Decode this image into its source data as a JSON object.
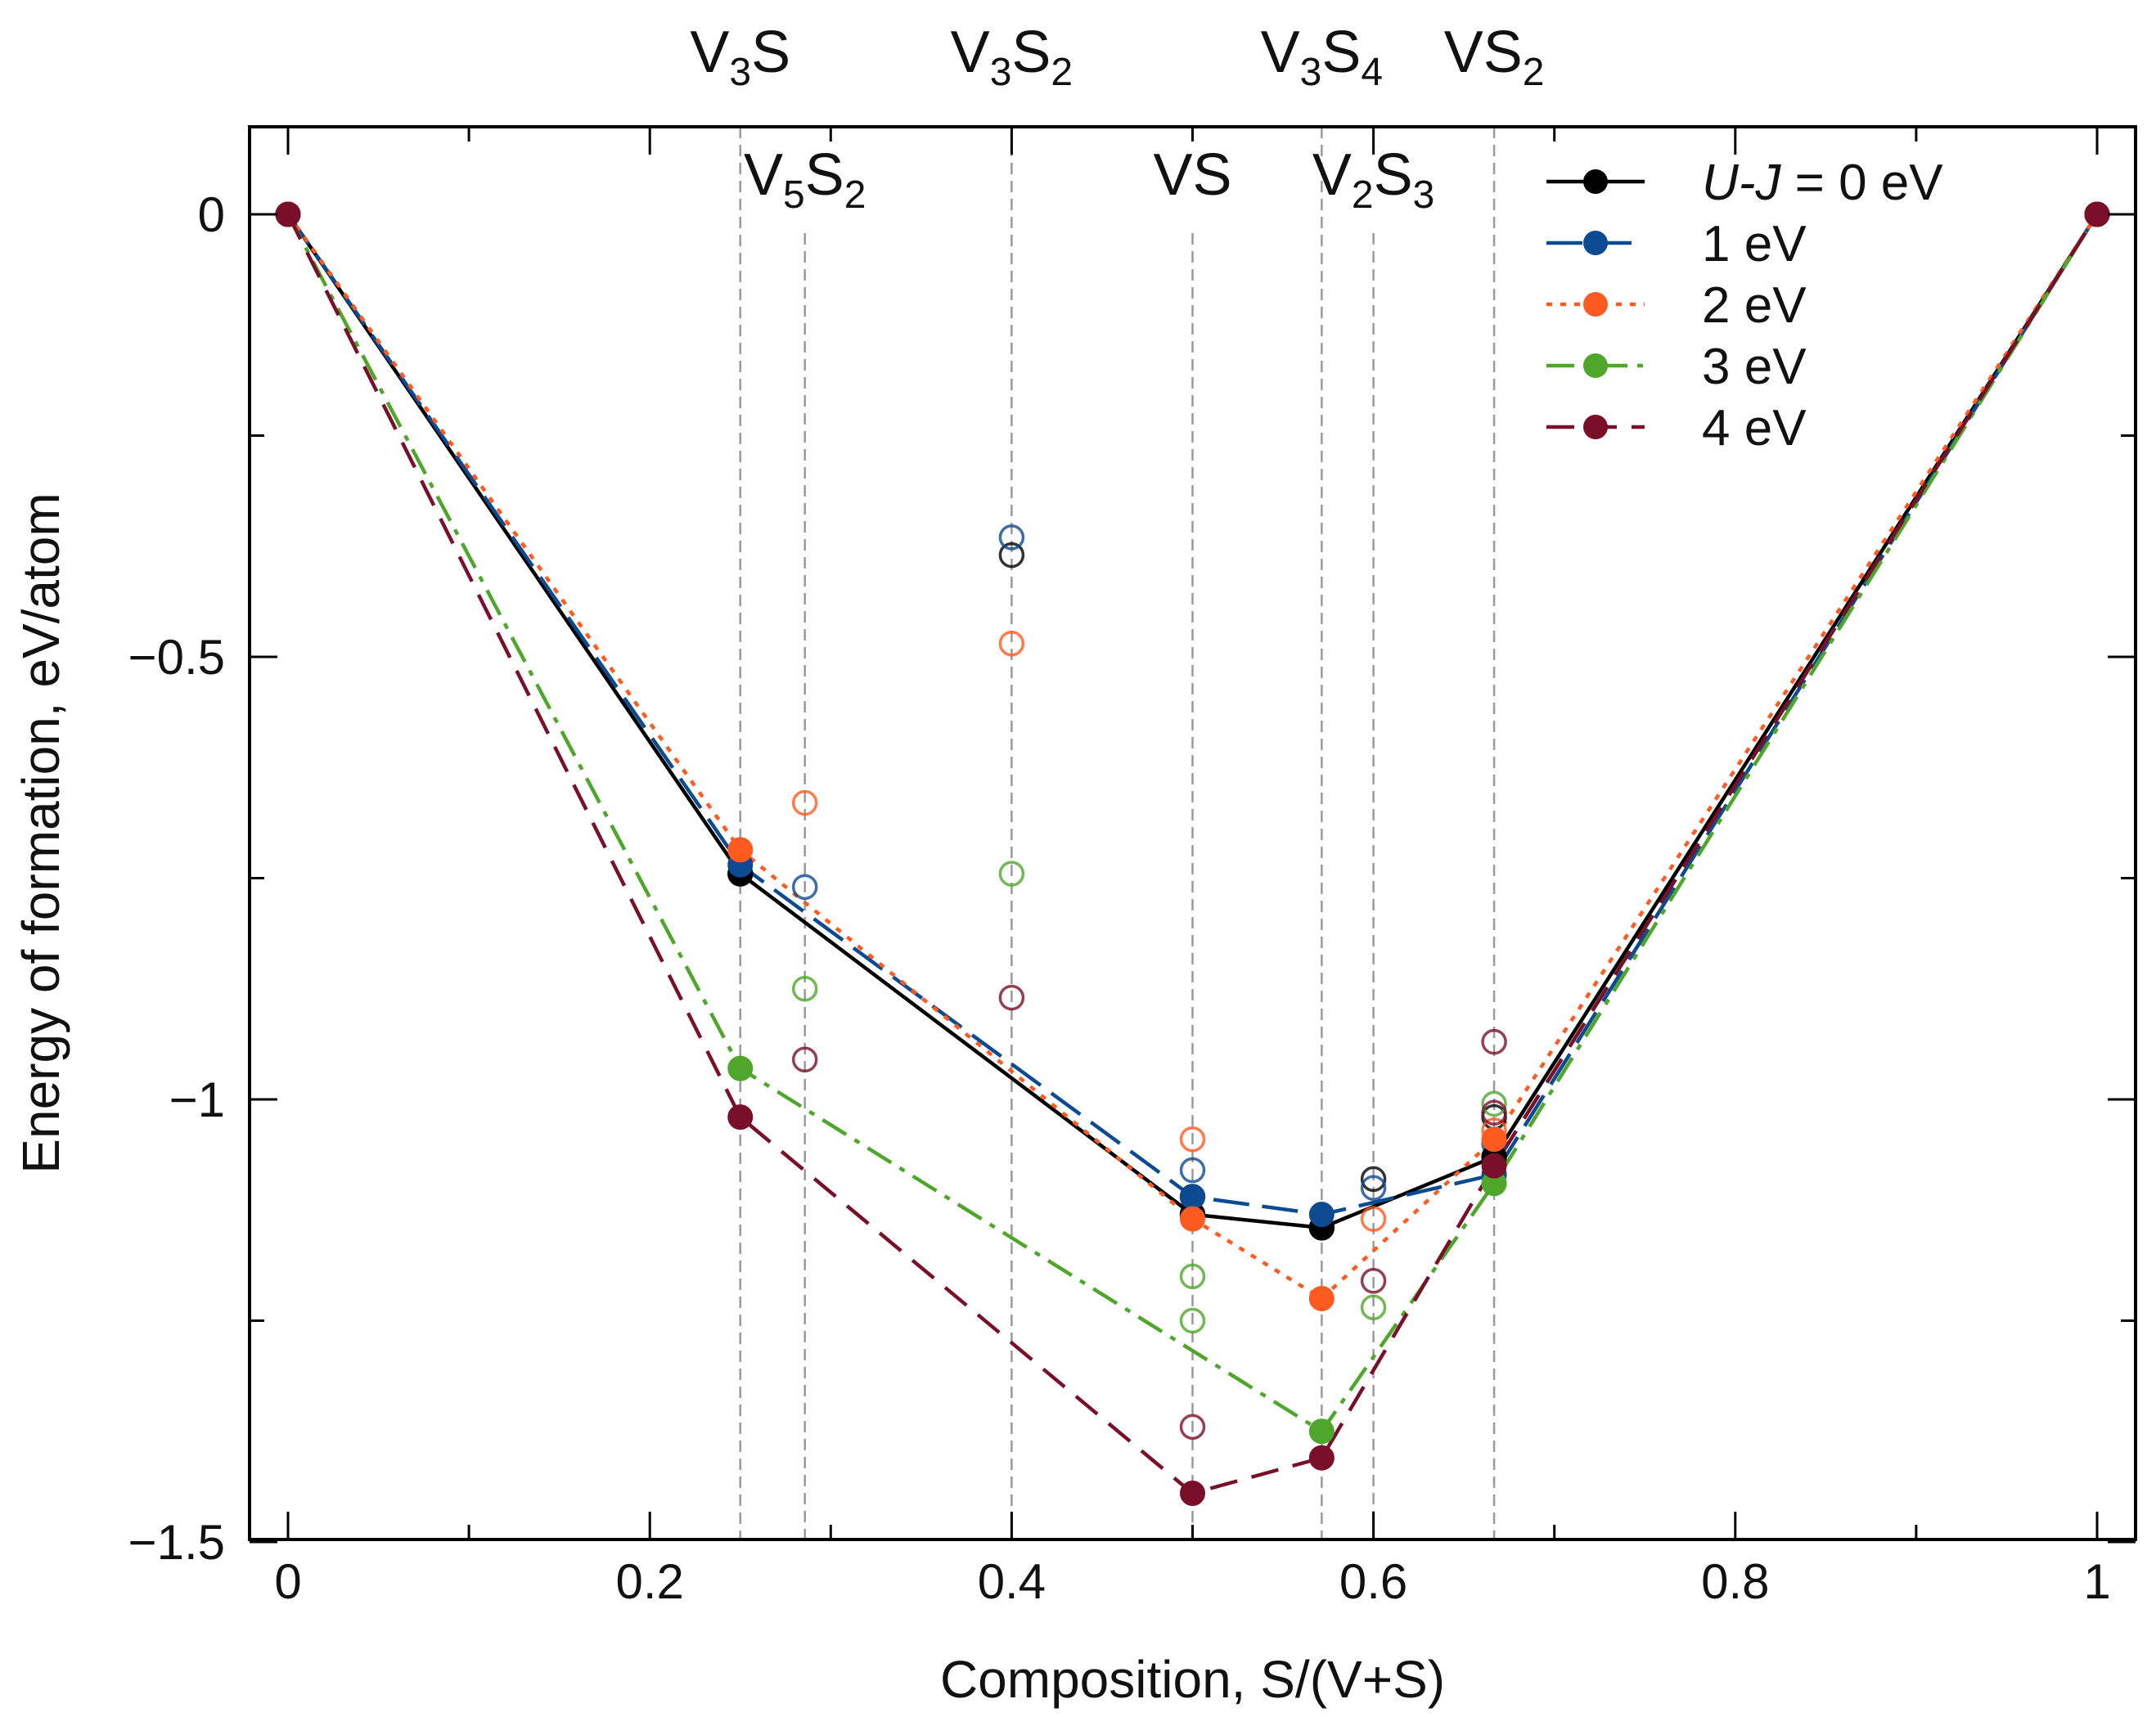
{
  "chart_data": {
    "type": "line",
    "title": "",
    "xlabel": "Composition, S/(V+S)",
    "ylabel": "Energy of formation, eV/atom",
    "xlim": [
      -0.02,
      1.02
    ],
    "ylim": [
      -1.5,
      0.1
    ],
    "x_ticks": [
      0,
      0.2,
      0.4,
      0.6,
      0.8,
      1
    ],
    "x_tick_labels": [
      "0",
      "0.2",
      "0.4",
      "0.6",
      "0.8",
      "1"
    ],
    "y_ticks": [
      0,
      -0.5,
      -1,
      -1.5
    ],
    "y_tick_labels": [
      "0",
      "−0.5",
      "−1",
      "−1.5"
    ],
    "grid": false,
    "legend_position": "top-right",
    "phases": [
      {
        "x": 0.25,
        "base": "V",
        "sub1": "3",
        "mid": "S",
        "sub2": "",
        "row": "top"
      },
      {
        "x": 0.2857,
        "base": "V",
        "sub1": "5",
        "mid": "S",
        "sub2": "2",
        "row": "inner"
      },
      {
        "x": 0.4,
        "base": "V",
        "sub1": "3",
        "mid": "S",
        "sub2": "2",
        "row": "top"
      },
      {
        "x": 0.5,
        "base": "V",
        "sub1": "",
        "mid": "S",
        "sub2": "",
        "row": "inner"
      },
      {
        "x": 0.5714,
        "base": "V",
        "sub1": "3",
        "mid": "S",
        "sub2": "4",
        "row": "top"
      },
      {
        "x": 0.6,
        "base": "V",
        "sub1": "2",
        "mid": "S",
        "sub2": "3",
        "row": "inner"
      },
      {
        "x": 0.6667,
        "base": "V",
        "sub1": "",
        "mid": "S",
        "sub2": "2",
        "row": "top"
      }
    ],
    "series": [
      {
        "name": "U-J = 0 eV",
        "legend_italic": "U-J",
        "legend_rest": " = 0 eV",
        "color": "#000000",
        "dash": "solid",
        "hull": [
          [
            0,
            0
          ],
          [
            0.25,
            -0.745
          ],
          [
            0.5,
            -1.13
          ],
          [
            0.5714,
            -1.145
          ],
          [
            0.6667,
            -1.065
          ],
          [
            1,
            0
          ]
        ],
        "points": [
          [
            0.25,
            -0.745
          ],
          [
            0.4,
            -0.385
          ],
          [
            0.5,
            -1.13
          ],
          [
            0.5,
            -1.11
          ],
          [
            0.5714,
            -1.145
          ],
          [
            0.6,
            -1.09
          ],
          [
            0.6667,
            -1.065
          ],
          [
            0.6667,
            -1.02
          ]
        ],
        "stable": [
          [
            0,
            0
          ],
          [
            0.25,
            -0.745
          ],
          [
            0.5,
            -1.13
          ],
          [
            0.5714,
            -1.145
          ],
          [
            0.6667,
            -1.065
          ],
          [
            1,
            0
          ]
        ]
      },
      {
        "name": "1 eV",
        "color": "#0c4a91",
        "dash": "longdash",
        "hull": [
          [
            0,
            0
          ],
          [
            0.25,
            -0.735
          ],
          [
            0.5,
            -1.11
          ],
          [
            0.5714,
            -1.13
          ],
          [
            0.6667,
            -1.085
          ],
          [
            1,
            0
          ]
        ],
        "points": [
          [
            0.2857,
            -0.76
          ],
          [
            0.4,
            -0.365
          ],
          [
            0.5,
            -1.08
          ],
          [
            0.6,
            -1.1
          ],
          [
            0.6667,
            -1.05
          ]
        ],
        "stable": [
          [
            0,
            0
          ],
          [
            0.25,
            -0.735
          ],
          [
            0.5,
            -1.11
          ],
          [
            0.5714,
            -1.13
          ],
          [
            0.6667,
            -1.085
          ],
          [
            1,
            0
          ]
        ]
      },
      {
        "name": "2 eV",
        "color": "#ff5a1f",
        "dash": "dot",
        "hull": [
          [
            0,
            0
          ],
          [
            0.25,
            -0.718
          ],
          [
            0.5,
            -1.135
          ],
          [
            0.5714,
            -1.225
          ],
          [
            0.6667,
            -1.045
          ],
          [
            1,
            0
          ]
        ],
        "points": [
          [
            0.2857,
            -0.665
          ],
          [
            0.4,
            -0.485
          ],
          [
            0.5,
            -1.045
          ],
          [
            0.6,
            -1.135
          ],
          [
            0.6667,
            -1.035
          ]
        ],
        "stable": [
          [
            0,
            0
          ],
          [
            0.25,
            -0.718
          ],
          [
            0.5,
            -1.135
          ],
          [
            0.5714,
            -1.225
          ],
          [
            0.6667,
            -1.045
          ],
          [
            1,
            0
          ]
        ]
      },
      {
        "name": "3 eV",
        "color": "#4ea72a",
        "dash": "dashdot",
        "hull": [
          [
            0,
            0
          ],
          [
            0.25,
            -0.965
          ],
          [
            0.5714,
            -1.375
          ],
          [
            0.6667,
            -1.095
          ],
          [
            1,
            0
          ]
        ],
        "points": [
          [
            0.2857,
            -0.875
          ],
          [
            0.4,
            -0.745
          ],
          [
            0.5,
            -1.2
          ],
          [
            0.5,
            -1.25
          ],
          [
            0.6,
            -1.235
          ],
          [
            0.6667,
            -1.005
          ]
        ],
        "stable": [
          [
            0,
            0
          ],
          [
            0.25,
            -0.965
          ],
          [
            0.5714,
            -1.375
          ],
          [
            0.6667,
            -1.095
          ],
          [
            1,
            0
          ]
        ]
      },
      {
        "name": "4 eV",
        "color": "#7a0f2a",
        "dash": "dash",
        "hull": [
          [
            0,
            0
          ],
          [
            0.25,
            -1.02
          ],
          [
            0.5,
            -1.445
          ],
          [
            0.5714,
            -1.405
          ],
          [
            0.6667,
            -1.075
          ],
          [
            1,
            0
          ]
        ],
        "points": [
          [
            0.2857,
            -0.955
          ],
          [
            0.4,
            -0.885
          ],
          [
            0.5,
            -1.37
          ],
          [
            0.6,
            -1.205
          ],
          [
            0.6667,
            -0.935
          ],
          [
            0.6667,
            -1.015
          ]
        ],
        "stable": [
          [
            0,
            0
          ],
          [
            0.25,
            -1.02
          ],
          [
            0.5,
            -1.445
          ],
          [
            0.5714,
            -1.405
          ],
          [
            0.6667,
            -1.075
          ],
          [
            1,
            0
          ]
        ]
      }
    ]
  }
}
